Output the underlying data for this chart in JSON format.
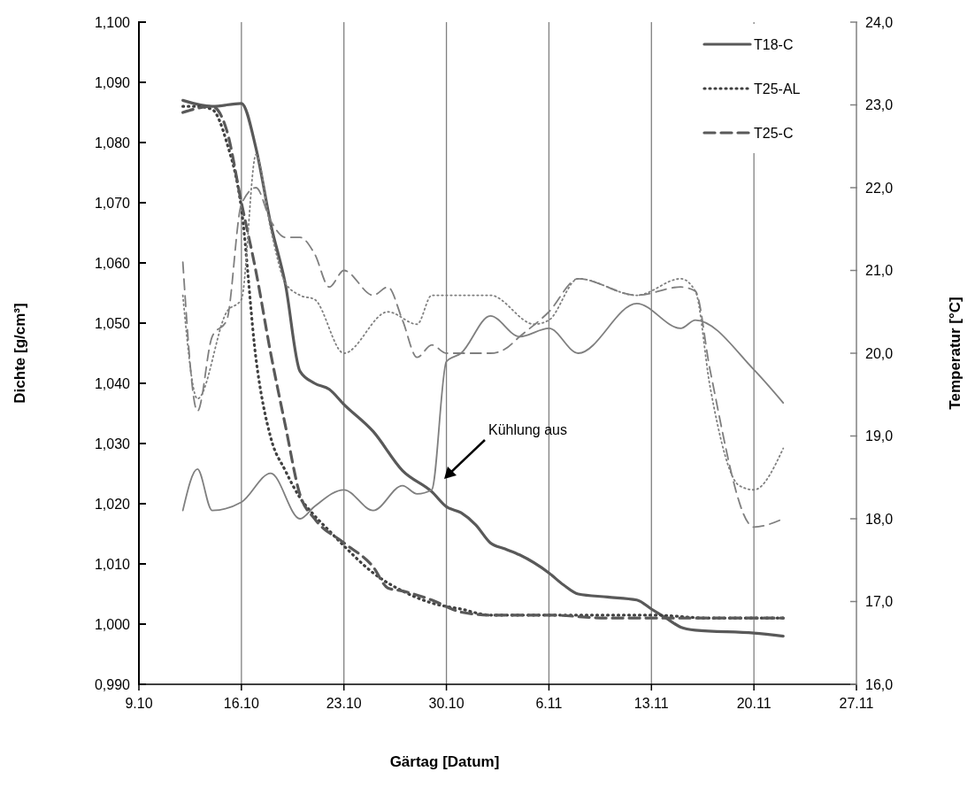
{
  "chart_data": {
    "type": "line",
    "xlabel": "Gärtag [Datum]",
    "ylabel": "Dichte [g/cm³]",
    "y2label": "Temperatur [°C]",
    "xlim": [
      "--10-09",
      "--11-27"
    ],
    "xticks": [
      {
        "value": "--10-09",
        "label": "9.10"
      },
      {
        "value": "--10-16",
        "label": "16.10"
      },
      {
        "value": "--10-23",
        "label": "23.10"
      },
      {
        "value": "--10-30",
        "label": "30.10"
      },
      {
        "value": "--11-06",
        "label": "6.11"
      },
      {
        "value": "--11-13",
        "label": "13.11"
      },
      {
        "value": "--11-20",
        "label": "20.11"
      },
      {
        "value": "--11-27",
        "label": "27.11"
      }
    ],
    "ylim": [
      0.99,
      1.1
    ],
    "yticks": [
      {
        "value": 0.99,
        "label": "0,990"
      },
      {
        "value": 1.0,
        "label": "1,000"
      },
      {
        "value": 1.01,
        "label": "1,010"
      },
      {
        "value": 1.02,
        "label": "1,020"
      },
      {
        "value": 1.03,
        "label": "1,030"
      },
      {
        "value": 1.04,
        "label": "1,040"
      },
      {
        "value": 1.05,
        "label": "1,050"
      },
      {
        "value": 1.06,
        "label": "1,060"
      },
      {
        "value": 1.07,
        "label": "1,070"
      },
      {
        "value": 1.08,
        "label": "1,080"
      },
      {
        "value": 1.09,
        "label": "1,090"
      },
      {
        "value": 1.1,
        "label": "1,100"
      }
    ],
    "y2lim": [
      16,
      24
    ],
    "y2ticks": [
      {
        "value": 16,
        "label": "16,0"
      },
      {
        "value": 17,
        "label": "17,0"
      },
      {
        "value": 18,
        "label": "18,0"
      },
      {
        "value": 19,
        "label": "19,0"
      },
      {
        "value": 20,
        "label": "20,0"
      },
      {
        "value": 21,
        "label": "21,0"
      },
      {
        "value": 22,
        "label": "22,0"
      },
      {
        "value": 23,
        "label": "23,0"
      },
      {
        "value": 24,
        "label": "24,0"
      }
    ],
    "grid": "x",
    "legend": "top right",
    "annotations": [
      "Kühlung aus"
    ],
    "series": [
      {
        "name": "T18-C",
        "color": "#595959",
        "line_style": "solid",
        "x": [
          "--10-12",
          "--10-14",
          "--10-16",
          "--10-17",
          "--10-18",
          "--10-19",
          "--10-20",
          "--10-21",
          "--10-22",
          "--10-23",
          "--10-25",
          "--10-27",
          "--10-29",
          "--10-30",
          "--10-31",
          "--11-01",
          "--11-02",
          "--11-03",
          "--11-04",
          "--11-06",
          "--11-07",
          "--11-08",
          "--11-10",
          "--11-12",
          "--11-13",
          "--11-14",
          "--11-15",
          "--11-16",
          "--11-20",
          "--11-22"
        ],
        "values": [
          1.087,
          1.086,
          1.0865,
          1.079,
          1.0665,
          1.0565,
          1.042,
          1.04,
          1.039,
          1.0365,
          1.032,
          1.0255,
          1.022,
          1.0195,
          1.0185,
          1.0165,
          1.0135,
          1.0125,
          1.0115,
          1.0085,
          1.0065,
          1.005,
          1.0045,
          1.004,
          1.0025,
          1.001,
          0.9995,
          0.999,
          0.9985,
          0.998
        ]
      },
      {
        "name": "T25-AL",
        "color": "#404040",
        "line_style": "dotted",
        "x": [
          "--10-12",
          "--10-13",
          "--10-14",
          "--10-15",
          "--10-16",
          "--10-17",
          "--10-18",
          "--10-19",
          "--10-20",
          "--10-21",
          "--10-22",
          "--10-23",
          "--10-25",
          "--10-27",
          "--10-29",
          "--10-31",
          "--11-02",
          "--11-05",
          "--11-09",
          "--11-13",
          "--11-17",
          "--11-22"
        ],
        "values": [
          1.086,
          1.086,
          1.0855,
          1.08,
          1.069,
          1.044,
          1.031,
          1.0255,
          1.021,
          1.018,
          1.0155,
          1.013,
          1.0085,
          1.0055,
          1.0035,
          1.0025,
          1.0015,
          1.0015,
          1.0015,
          1.0015,
          1.001,
          1.001
        ]
      },
      {
        "name": "T25-C",
        "color": "#595959",
        "line_style": "dashed",
        "x": [
          "--10-12",
          "--10-14",
          "--10-15",
          "--10-16",
          "--10-17",
          "--10-18",
          "--10-19",
          "--10-20",
          "--10-21",
          "--10-23",
          "--10-25",
          "--10-26",
          "--10-27",
          "--10-29",
          "--10-31",
          "--11-02",
          "--11-06",
          "--11-10",
          "--11-13",
          "--11-17",
          "--11-22"
        ],
        "values": [
          1.085,
          1.086,
          1.082,
          1.07,
          1.0585,
          1.045,
          1.033,
          1.0215,
          1.0175,
          1.0135,
          1.0095,
          1.006,
          1.0055,
          1.004,
          1.002,
          1.0015,
          1.0015,
          1.001,
          1.001,
          1.001,
          1.001
        ]
      },
      {
        "axis": "y2",
        "color": "#7f7f7f",
        "line_style": "solid",
        "x": [
          "--10-12",
          "--10-13",
          "--10-14",
          "--10-16",
          "--10-18",
          "--10-20",
          "--10-21",
          "--10-23",
          "--10-25",
          "--10-27",
          "--10-28",
          "--10-29",
          "--10-30",
          "--10-31",
          "--11-02",
          "--11-04",
          "--11-06",
          "--11-08",
          "--11-12",
          "--11-15",
          "--11-16",
          "--11-20",
          "--11-22"
        ],
        "values": [
          18.1,
          18.6,
          18.1,
          18.2,
          18.55,
          18.0,
          18.15,
          18.35,
          18.1,
          18.4,
          18.3,
          18.35,
          19.9,
          20.0,
          20.45,
          20.2,
          20.3,
          20.0,
          20.6,
          20.3,
          20.4,
          19.8,
          19.4
        ]
      },
      {
        "axis": "y2",
        "color": "#7f7f7f",
        "line_style": "dotted",
        "x": [
          "--10-12",
          "--10-13",
          "--10-15",
          "--10-16",
          "--10-17",
          "--10-18",
          "--10-19",
          "--10-20",
          "--10-21",
          "--10-23",
          "--10-26",
          "--10-28",
          "--10-29",
          "--11-02",
          "--11-05",
          "--11-06",
          "--11-08",
          "--11-12",
          "--11-15",
          "--11-16",
          "--11-17",
          "--11-19",
          "--11-20",
          "--11-22"
        ],
        "values": [
          20.7,
          19.45,
          20.5,
          20.65,
          22.4,
          21.5,
          20.85,
          20.7,
          20.65,
          20.0,
          20.5,
          20.35,
          20.7,
          20.7,
          20.35,
          20.4,
          20.9,
          20.7,
          20.9,
          20.75,
          19.6,
          18.4,
          18.35,
          18.85
        ]
      },
      {
        "axis": "y2",
        "color": "#7f7f7f",
        "line_style": "dashed",
        "x": [
          "--10-12",
          "--10-13",
          "--10-14",
          "--10-15",
          "--10-16",
          "--10-17",
          "--10-18",
          "--10-19",
          "--10-20",
          "--10-21",
          "--10-22",
          "--10-23",
          "--10-25",
          "--10-26",
          "--10-27",
          "--10-28",
          "--10-29",
          "--10-30",
          "--11-02",
          "--11-03",
          "--11-04",
          "--11-06",
          "--11-08",
          "--11-12",
          "--11-15",
          "--11-16",
          "--11-17",
          "--11-20",
          "--11-22"
        ],
        "values": [
          21.1,
          19.3,
          20.2,
          20.4,
          21.8,
          22.0,
          21.6,
          21.4,
          21.4,
          21.2,
          20.8,
          21.0,
          20.7,
          20.8,
          20.4,
          19.95,
          20.1,
          20.0,
          20.0,
          20.05,
          20.2,
          20.5,
          20.9,
          20.7,
          20.8,
          20.75,
          19.8,
          17.9,
          18.0
        ]
      }
    ]
  }
}
